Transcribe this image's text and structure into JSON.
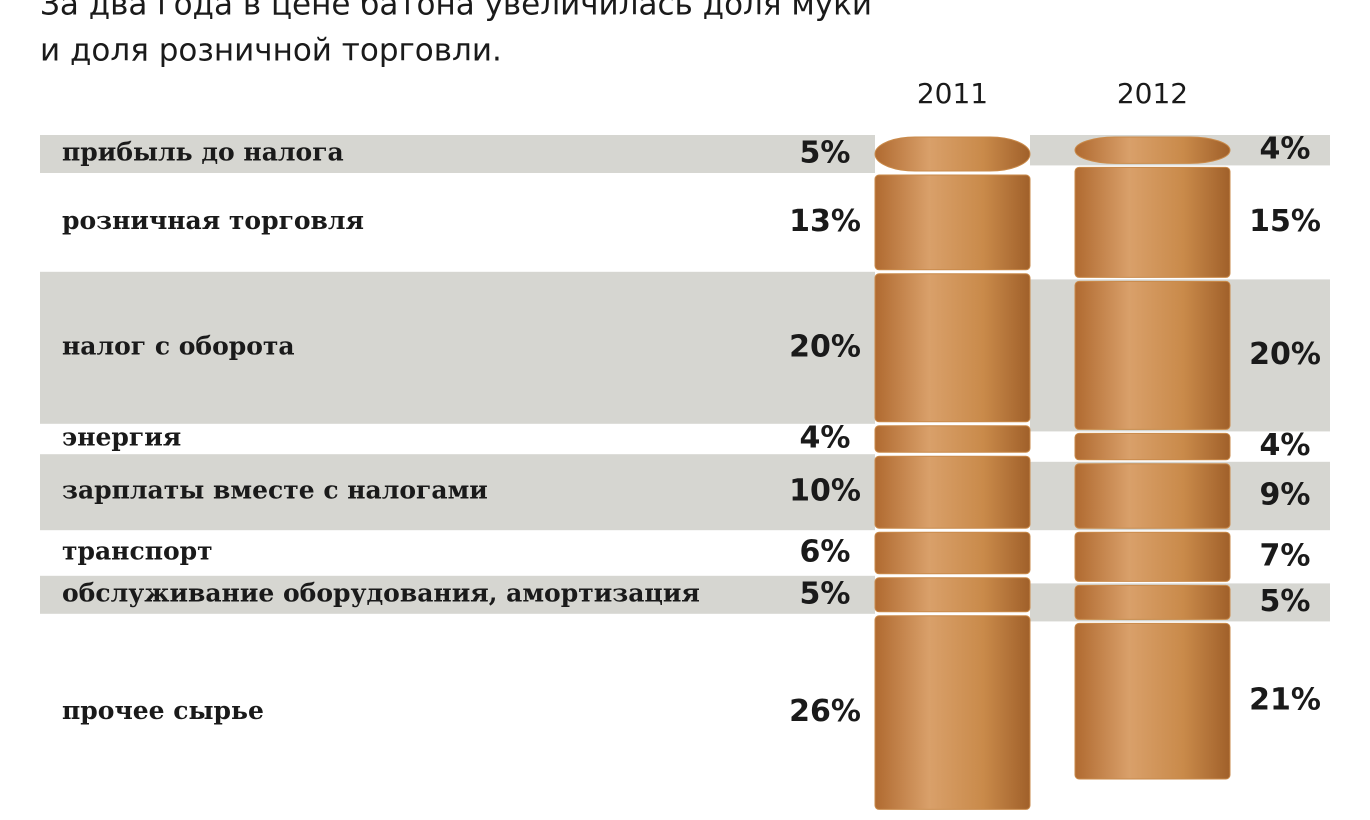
{
  "chart_data": {
    "type": "stacked-bar",
    "title": "За два года в цене батона увеличилась доля муки",
    "subtitle": "и доля розничной торговли.",
    "categories": [
      "прибыль до налога",
      "розничная торговля",
      "налог с оборота",
      "энергия",
      "зарплаты вместе с налогами",
      "транспорт",
      "обслуживание оборудования, амортизация",
      "прочее сырье"
    ],
    "series": [
      {
        "name": "2011",
        "color": "#c98a4a",
        "values": [
          5,
          13,
          20,
          4,
          10,
          6,
          5,
          26
        ],
        "value_labels": [
          "5%",
          "13%",
          "20%",
          "4%",
          "10%",
          "6%",
          "5%",
          "26%"
        ]
      },
      {
        "name": "2012",
        "color": "#c98a4a",
        "values": [
          4,
          15,
          20,
          4,
          9,
          7,
          5,
          21
        ],
        "value_labels": [
          "4%",
          "15%",
          "20%",
          "4%",
          "9%",
          "7%",
          "5%",
          "21%"
        ]
      }
    ]
  }
}
